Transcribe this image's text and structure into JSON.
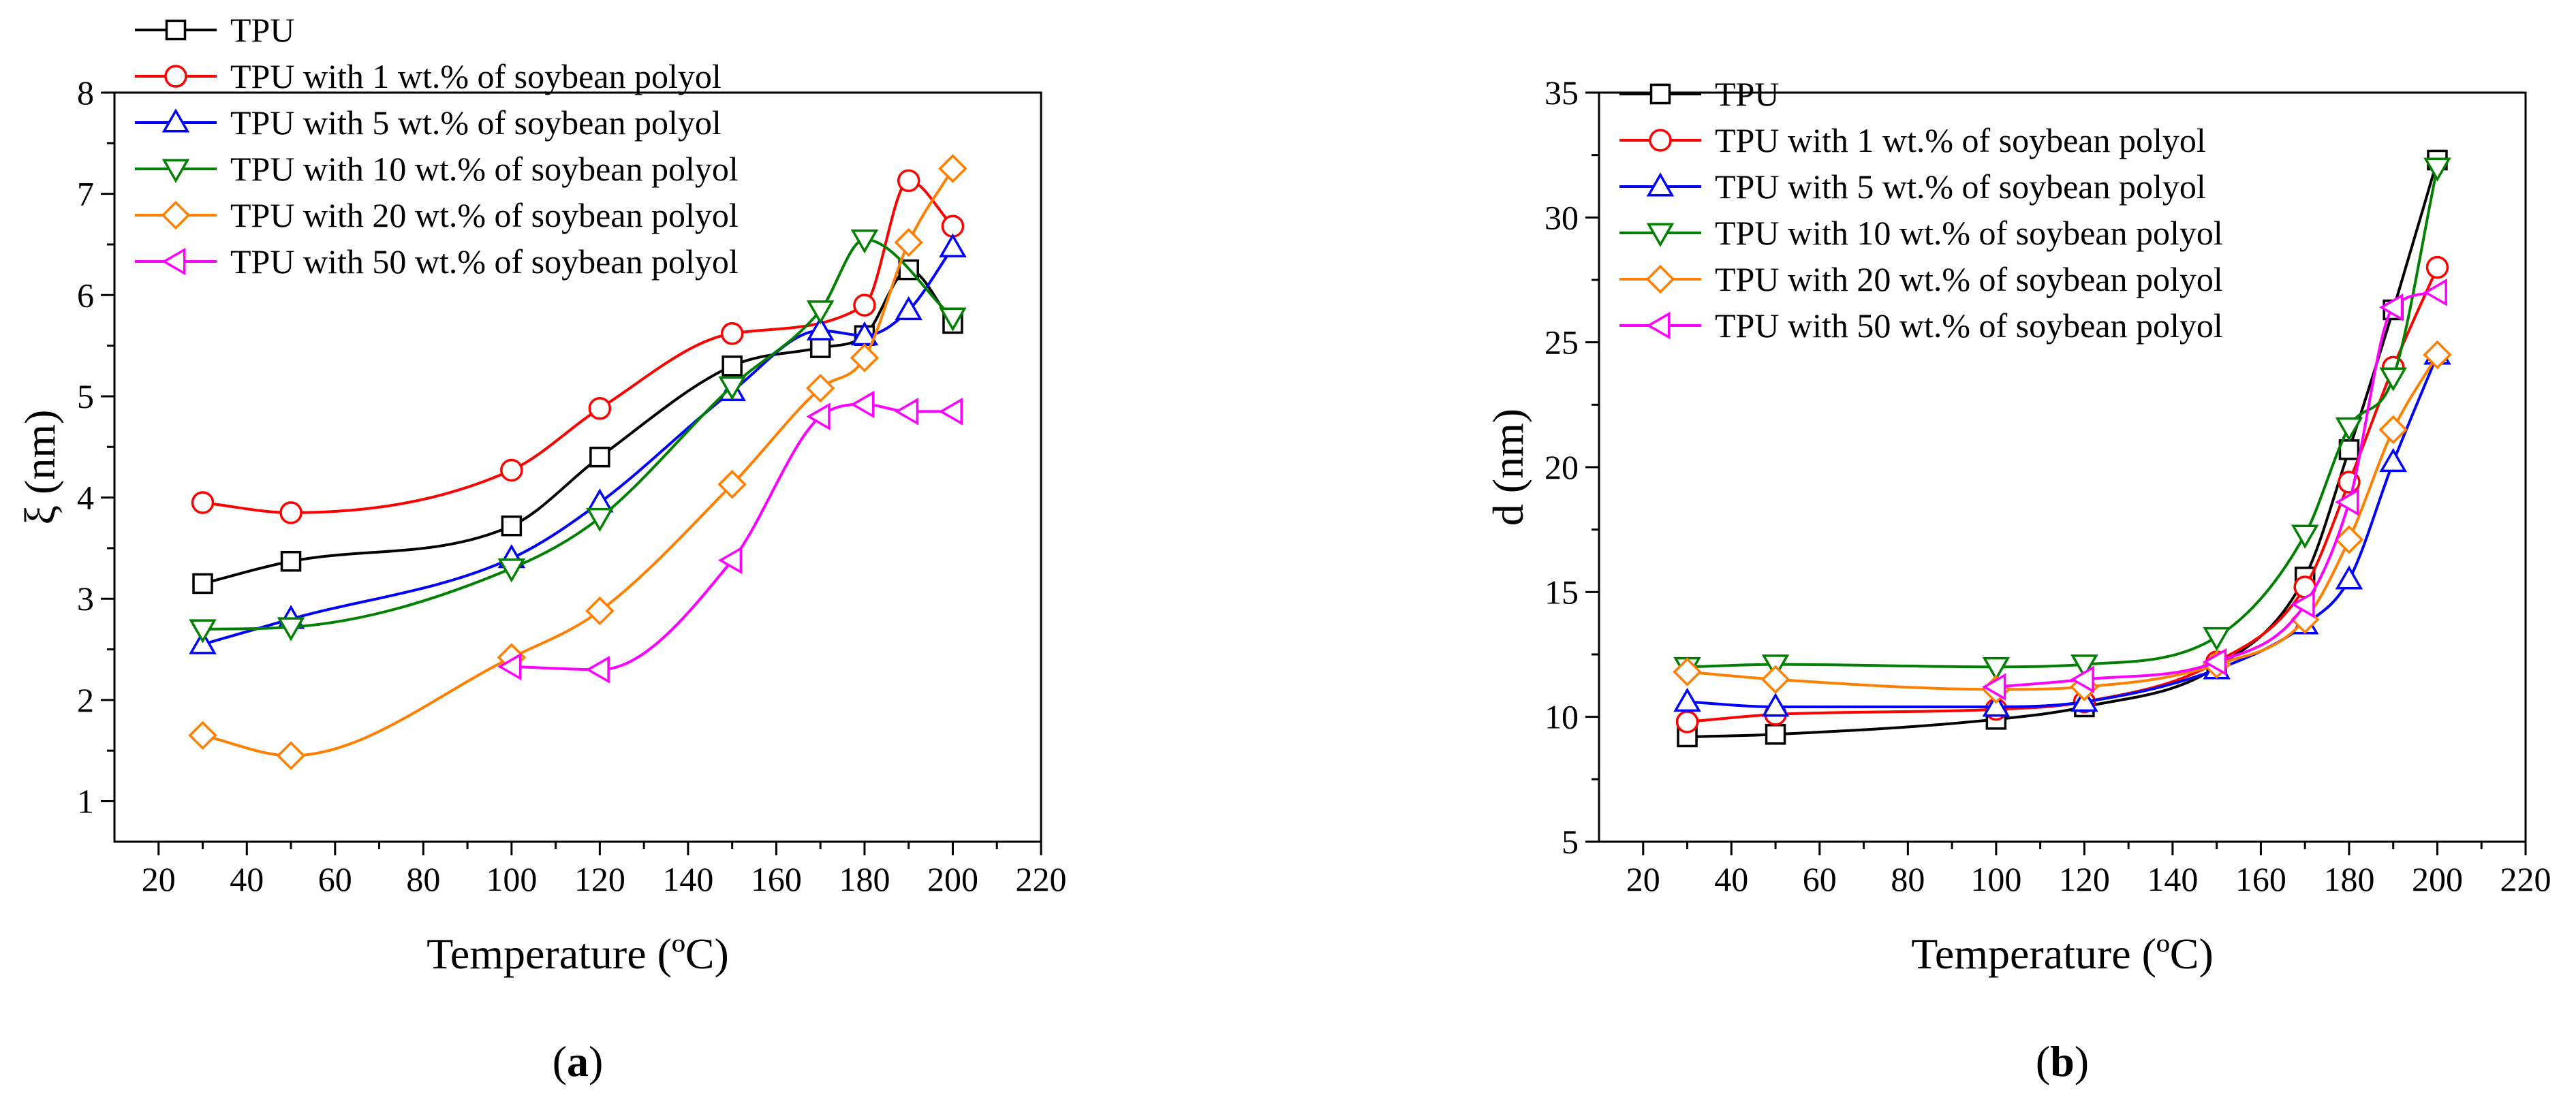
{
  "panels": [
    {
      "caption": "(a)",
      "caption_letter": "a"
    },
    {
      "caption": "(b)",
      "caption_letter": "b"
    }
  ],
  "legend_symbols": [
    "square",
    "circle",
    "triangle-up",
    "triangle-down",
    "diamond",
    "triangle-left"
  ],
  "chart_data": [
    {
      "type": "line",
      "panel": "a",
      "title": "",
      "xlabel": "Temperature (ºC)",
      "ylabel": "ξ (nm)",
      "xlim": [
        10,
        220
      ],
      "ylim": [
        0.6,
        8
      ],
      "xticks": [
        20,
        40,
        60,
        80,
        100,
        120,
        140,
        160,
        180,
        200,
        220
      ],
      "yticks": [
        1,
        2,
        3,
        4,
        5,
        6,
        7,
        8
      ],
      "grid": false,
      "legend_position": "top-left",
      "series": [
        {
          "name": "TPU",
          "color": "#000000",
          "marker": "square",
          "x": [
            30,
            50,
            100,
            120,
            150,
            170,
            180,
            190,
            200
          ],
          "y": [
            3.15,
            3.37,
            3.72,
            4.4,
            5.3,
            5.48,
            5.6,
            6.25,
            5.72
          ]
        },
        {
          "name": "TPU with 1 wt.% of soybean polyol",
          "color": "#ff0000",
          "marker": "circle",
          "x": [
            30,
            50,
            100,
            120,
            150,
            180,
            190,
            200
          ],
          "y": [
            3.95,
            3.85,
            4.27,
            4.88,
            5.62,
            5.9,
            7.13,
            6.68
          ]
        },
        {
          "name": "TPU with 5 wt.% of soybean polyol",
          "color": "#0000ff",
          "marker": "triangle-up",
          "x": [
            30,
            50,
            100,
            120,
            150,
            170,
            180,
            190,
            200
          ],
          "y": [
            2.55,
            2.8,
            3.4,
            3.95,
            5.05,
            5.65,
            5.6,
            5.85,
            6.47
          ]
        },
        {
          "name": "TPU with 10 wt.% of soybean polyol",
          "color": "#008000",
          "marker": "triangle-down",
          "x": [
            30,
            50,
            100,
            120,
            150,
            170,
            180,
            200
          ],
          "y": [
            2.7,
            2.72,
            3.3,
            3.8,
            5.1,
            5.85,
            6.55,
            5.78
          ]
        },
        {
          "name": "TPU with 20 wt.% of soybean polyol",
          "color": "#ff8000",
          "marker": "diamond",
          "x": [
            30,
            50,
            100,
            120,
            150,
            170,
            180,
            190,
            200
          ],
          "y": [
            1.65,
            1.45,
            2.42,
            2.88,
            4.13,
            5.08,
            5.38,
            6.52,
            7.25
          ]
        },
        {
          "name": "TPU with 50 wt.% of soybean polyol",
          "color": "#ff00ff",
          "marker": "triangle-left",
          "x": [
            100,
            120,
            150,
            170,
            180,
            190,
            200
          ],
          "y": [
            2.33,
            2.3,
            3.38,
            4.8,
            4.92,
            4.85,
            4.85
          ]
        }
      ]
    },
    {
      "type": "line",
      "panel": "b",
      "title": "",
      "xlabel": "Temperature (ºC)",
      "ylabel": "d (nm)",
      "xlim": [
        10,
        220
      ],
      "ylim": [
        5,
        35
      ],
      "xticks": [
        20,
        40,
        60,
        80,
        100,
        120,
        140,
        160,
        180,
        200,
        220
      ],
      "yticks": [
        5,
        10,
        15,
        20,
        25,
        30,
        35
      ],
      "grid": false,
      "legend_position": "top-left",
      "series": [
        {
          "name": "TPU",
          "color": "#000000",
          "marker": "square",
          "x": [
            30,
            50,
            100,
            120,
            150,
            170,
            180,
            190,
            200
          ],
          "y": [
            9.2,
            9.3,
            9.9,
            10.4,
            12.0,
            15.6,
            20.7,
            26.3,
            32.3
          ]
        },
        {
          "name": "TPU with 1 wt.% of soybean polyol",
          "color": "#ff0000",
          "marker": "circle",
          "x": [
            30,
            50,
            100,
            120,
            150,
            170,
            180,
            190,
            200
          ],
          "y": [
            9.8,
            10.1,
            10.3,
            10.6,
            12.2,
            15.2,
            19.4,
            24.0,
            28.0
          ]
        },
        {
          "name": "TPU with 5 wt.% of soybean polyol",
          "color": "#0000ff",
          "marker": "triangle-up",
          "x": [
            30,
            50,
            100,
            120,
            150,
            170,
            180,
            190,
            200
          ],
          "y": [
            10.6,
            10.4,
            10.4,
            10.6,
            11.9,
            13.7,
            15.5,
            20.2,
            24.5
          ]
        },
        {
          "name": "TPU with 10 wt.% of soybean polyol",
          "color": "#008000",
          "marker": "triangle-down",
          "x": [
            30,
            50,
            100,
            120,
            150,
            170,
            180,
            190,
            200
          ],
          "y": [
            12.0,
            12.1,
            12.0,
            12.1,
            13.2,
            17.3,
            21.6,
            23.6,
            32.0
          ]
        },
        {
          "name": "TPU with 20 wt.% of soybean polyol",
          "color": "#ff8000",
          "marker": "diamond",
          "x": [
            30,
            50,
            100,
            120,
            150,
            170,
            180,
            190,
            200
          ],
          "y": [
            11.8,
            11.5,
            11.1,
            11.2,
            12.1,
            13.9,
            17.1,
            21.5,
            24.5
          ]
        },
        {
          "name": "TPU with 50 wt.% of soybean polyol",
          "color": "#ff00ff",
          "marker": "triangle-left",
          "x": [
            100,
            120,
            150,
            170,
            180,
            190,
            200
          ],
          "y": [
            11.2,
            11.5,
            12.2,
            14.5,
            18.6,
            26.4,
            27.0
          ]
        }
      ]
    }
  ]
}
